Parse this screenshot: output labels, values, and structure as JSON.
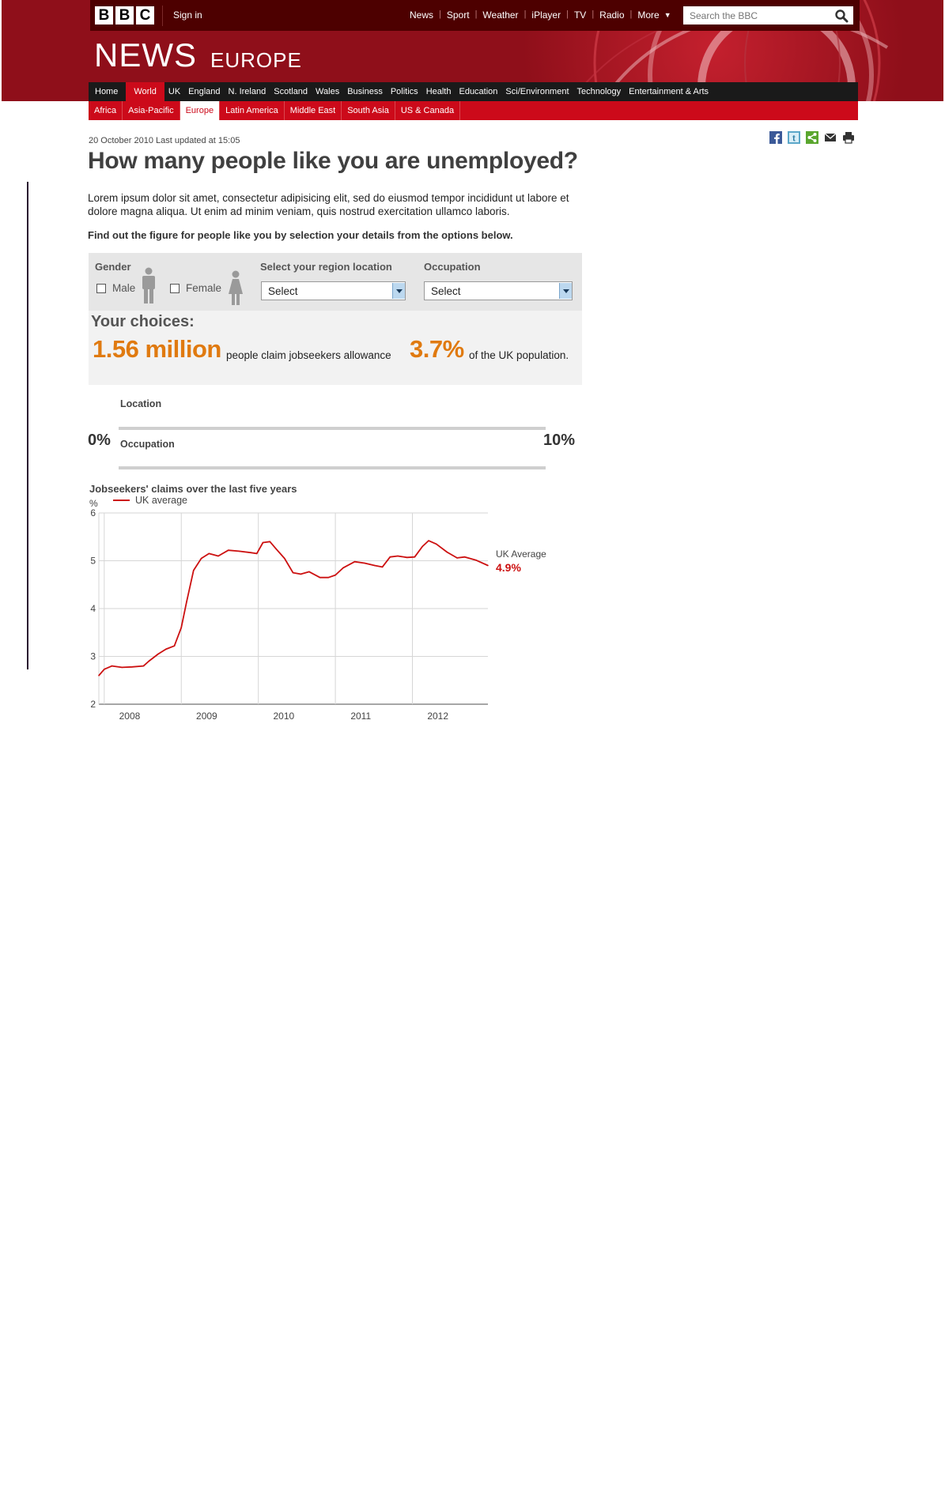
{
  "brand": {
    "letters": [
      "B",
      "B",
      "C"
    ]
  },
  "header": {
    "signin": "Sign in",
    "nav": [
      "News",
      "Sport",
      "Weather",
      "iPlayer",
      "TV",
      "Radio",
      "More"
    ],
    "search_placeholder": "Search the BBC",
    "title": "NEWS",
    "subtitle": "EUROPE",
    "colors": {
      "masthead": "#8f0f1a",
      "accent": "#cc0a1a"
    }
  },
  "primary_nav": [
    "Home",
    "World",
    "UK",
    "England",
    "N. Ireland",
    "Scotland",
    "Wales",
    "Business",
    "Politics",
    "Health",
    "Education",
    "Sci/Environment",
    "Technology",
    "Entertainment & Arts"
  ],
  "primary_nav_active": "World",
  "secondary_nav": [
    "Africa",
    "Asia-Pacific",
    "Europe",
    "Latin America",
    "Middle East",
    "South Asia",
    "US & Canada"
  ],
  "secondary_nav_active": "Europe",
  "article": {
    "date": "20 October 2010",
    "updated": "Last updated at 15:05",
    "headline": "How many people like you are unemployed?",
    "intro": "Lorem ipsum dolor sit amet, consectetur adipisicing elit, sed do eiusmod tempor incididunt ut labore et dolore magna aliqua. Ut enim ad minim veniam, quis nostrud exercitation ullamco laboris.",
    "instruction": "Find out the figure for people like you by selection your details from the options below."
  },
  "share": [
    "facebook-icon",
    "twitter-icon",
    "share-icon",
    "email-icon",
    "print-icon"
  ],
  "selector": {
    "gender_label": "Gender",
    "male": "Male",
    "female": "Female",
    "region_label": "Select your region location",
    "region_value": "Select",
    "occupation_label": "Occupation",
    "occupation_value": "Select"
  },
  "choices": {
    "title": "Your choices:",
    "claimants": "1.56 million",
    "claimants_text": "people claim jobseekers allowance",
    "percent": "3.7%",
    "percent_text": "of the UK population."
  },
  "ranges": {
    "location_label": "Location",
    "occupation_label": "Occupation",
    "min": "0%",
    "max": "10%"
  },
  "chart_data": {
    "type": "line",
    "title": "Jobseekers' claims over the last five years",
    "ylabel": "%",
    "ylim": [
      2,
      6
    ],
    "yticks": [
      "6",
      "5",
      "4",
      "3",
      "2"
    ],
    "xticks": [
      "2008",
      "2009",
      "2010",
      "2011",
      "2012"
    ],
    "xlim": [
      2007.8,
      2012.85
    ],
    "series": [
      {
        "name": "UK average",
        "color": "#cc1010",
        "x": [
          2007.8,
          2007.87,
          2007.97,
          2008.1,
          2008.23,
          2008.38,
          2008.45,
          2008.57,
          2008.67,
          2008.78,
          2008.87,
          2008.94,
          2009.03,
          2009.13,
          2009.23,
          2009.35,
          2009.48,
          2009.62,
          2009.77,
          2009.85,
          2009.93,
          2010.02,
          2010.1,
          2010.21,
          2010.32,
          2010.42,
          2010.53,
          2010.67,
          2010.78,
          2010.87,
          2010.97,
          2011.12,
          2011.25,
          2011.38,
          2011.48,
          2011.58,
          2011.68,
          2011.8,
          2011.9,
          2012.0,
          2012.08,
          2012.18,
          2012.32,
          2012.45,
          2012.55,
          2012.7,
          2012.85
        ],
        "y": [
          2.6,
          2.73,
          2.8,
          2.77,
          2.78,
          2.8,
          2.9,
          3.05,
          3.15,
          3.22,
          3.6,
          4.15,
          4.8,
          5.05,
          5.15,
          5.1,
          5.22,
          5.2,
          5.17,
          5.15,
          5.38,
          5.4,
          5.25,
          5.05,
          4.75,
          4.72,
          4.77,
          4.65,
          4.65,
          4.7,
          4.85,
          4.98,
          4.95,
          4.9,
          4.87,
          5.08,
          5.1,
          5.07,
          5.08,
          5.3,
          5.42,
          5.35,
          5.18,
          5.06,
          5.08,
          5.01,
          4.9
        ]
      }
    ],
    "annotation": {
      "label": "UK Average",
      "value": "4.9%"
    },
    "grid": true,
    "legend": "top-left"
  }
}
